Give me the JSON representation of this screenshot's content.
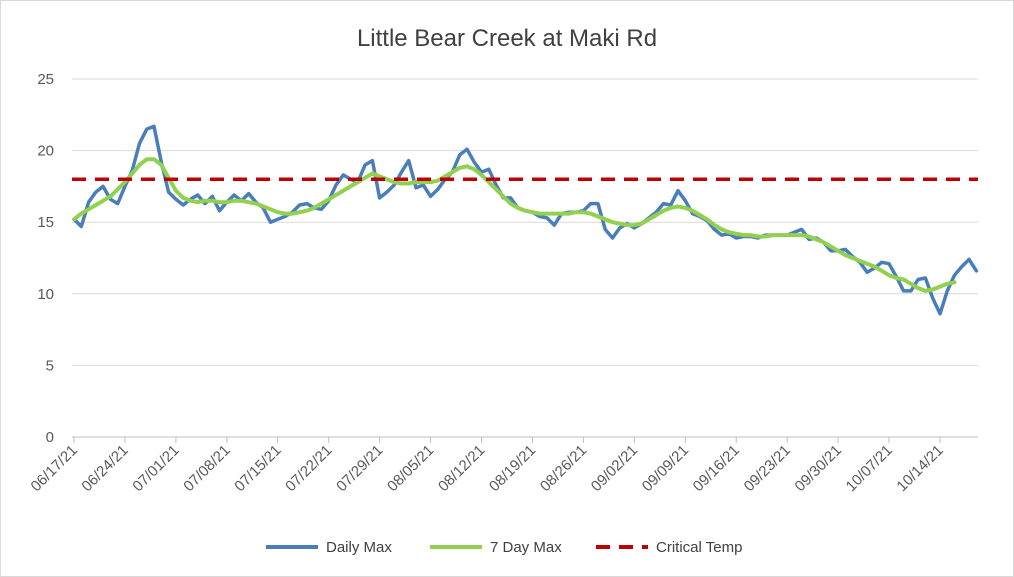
{
  "chart_data": {
    "type": "line",
    "title": "Little Bear Creek at Maki Rd",
    "xlabel": "",
    "ylabel": "",
    "ylim": [
      0,
      25
    ],
    "yticks": [
      0,
      5,
      10,
      15,
      20,
      25
    ],
    "grid": "horizontal",
    "legend_position": "bottom",
    "x_start": "06/17/21",
    "x_end": "10/17/21",
    "x_tick_labels": [
      "06/17/21",
      "06/24/21",
      "07/01/21",
      "07/08/21",
      "07/15/21",
      "07/22/21",
      "07/29/21",
      "08/05/21",
      "08/12/21",
      "08/19/21",
      "08/26/21",
      "09/02/21",
      "09/09/21",
      "09/16/21",
      "09/23/21",
      "09/30/21",
      "10/07/21",
      "10/14/21"
    ],
    "series": [
      {
        "name": "Daily Max",
        "color": "#4a7ebb",
        "style": "solid",
        "values": [
          15.2,
          14.7,
          16.4,
          17.1,
          17.5,
          16.6,
          16.3,
          17.5,
          18.6,
          20.5,
          21.5,
          21.7,
          19.2,
          17.1,
          16.6,
          16.2,
          16.6,
          16.9,
          16.3,
          16.8,
          15.8,
          16.4,
          16.9,
          16.5,
          17.0,
          16.4,
          16.0,
          15.0,
          15.2,
          15.4,
          15.7,
          16.2,
          16.3,
          16.0,
          15.9,
          16.5,
          17.6,
          18.3,
          18.0,
          17.8,
          19.0,
          19.3,
          16.7,
          17.1,
          17.6,
          18.5,
          19.3,
          17.4,
          17.6,
          16.8,
          17.3,
          18.0,
          18.5,
          19.7,
          20.1,
          19.2,
          18.5,
          18.7,
          17.6,
          16.7,
          16.7,
          16.0,
          15.8,
          15.7,
          15.4,
          15.3,
          14.8,
          15.6,
          15.7,
          15.7,
          15.8,
          16.3,
          16.3,
          14.5,
          13.9,
          14.6,
          14.9,
          14.6,
          14.9,
          15.3,
          15.7,
          16.3,
          16.2,
          17.2,
          16.5,
          15.6,
          15.4,
          15.1,
          14.5,
          14.1,
          14.2,
          13.9,
          14.0,
          14.0,
          13.9,
          14.1,
          14.1,
          14.1,
          14.1,
          14.3,
          14.5,
          13.8,
          13.9,
          13.6,
          13.0,
          13.0,
          13.1,
          12.6,
          12.2,
          11.5,
          11.8,
          12.2,
          12.1,
          11.2,
          10.2,
          10.2,
          11.0,
          11.1,
          9.7,
          8.6,
          10.2,
          11.3,
          11.9,
          12.4,
          11.6
        ]
      },
      {
        "name": "7 Day Max",
        "color": "#92d050",
        "style": "solid",
        "values": [
          15.2,
          15.6,
          15.9,
          16.2,
          16.5,
          16.8,
          17.3,
          17.8,
          18.4,
          19.0,
          19.4,
          19.4,
          19.0,
          18.1,
          17.2,
          16.7,
          16.5,
          16.4,
          16.5,
          16.5,
          16.4,
          16.4,
          16.5,
          16.5,
          16.4,
          16.3,
          16.1,
          15.9,
          15.7,
          15.6,
          15.6,
          15.7,
          15.8,
          16.0,
          16.3,
          16.6,
          16.9,
          17.2,
          17.5,
          17.8,
          18.1,
          18.4,
          18.2,
          18.0,
          17.8,
          17.7,
          17.7,
          17.8,
          17.8,
          17.8,
          17.9,
          18.2,
          18.5,
          18.8,
          18.9,
          18.7,
          18.3,
          17.8,
          17.3,
          16.8,
          16.3,
          16.0,
          15.8,
          15.7,
          15.6,
          15.6,
          15.6,
          15.6,
          15.6,
          15.7,
          15.7,
          15.6,
          15.4,
          15.2,
          15.0,
          14.9,
          14.8,
          14.8,
          14.9,
          15.2,
          15.5,
          15.8,
          16.0,
          16.1,
          16.0,
          15.8,
          15.5,
          15.2,
          14.8,
          14.5,
          14.3,
          14.2,
          14.1,
          14.1,
          14.0,
          14.0,
          14.1,
          14.1,
          14.1,
          14.1,
          14.1,
          14.0,
          13.8,
          13.6,
          13.3,
          13.0,
          12.7,
          12.5,
          12.3,
          12.1,
          11.9,
          11.6,
          11.3,
          11.1,
          11.0,
          10.7,
          10.4,
          10.2,
          10.3,
          10.5,
          10.7,
          10.8
        ]
      },
      {
        "name": "Critical Temp",
        "color": "#c00000",
        "style": "dashed",
        "values": [
          18,
          18
        ]
      }
    ]
  }
}
